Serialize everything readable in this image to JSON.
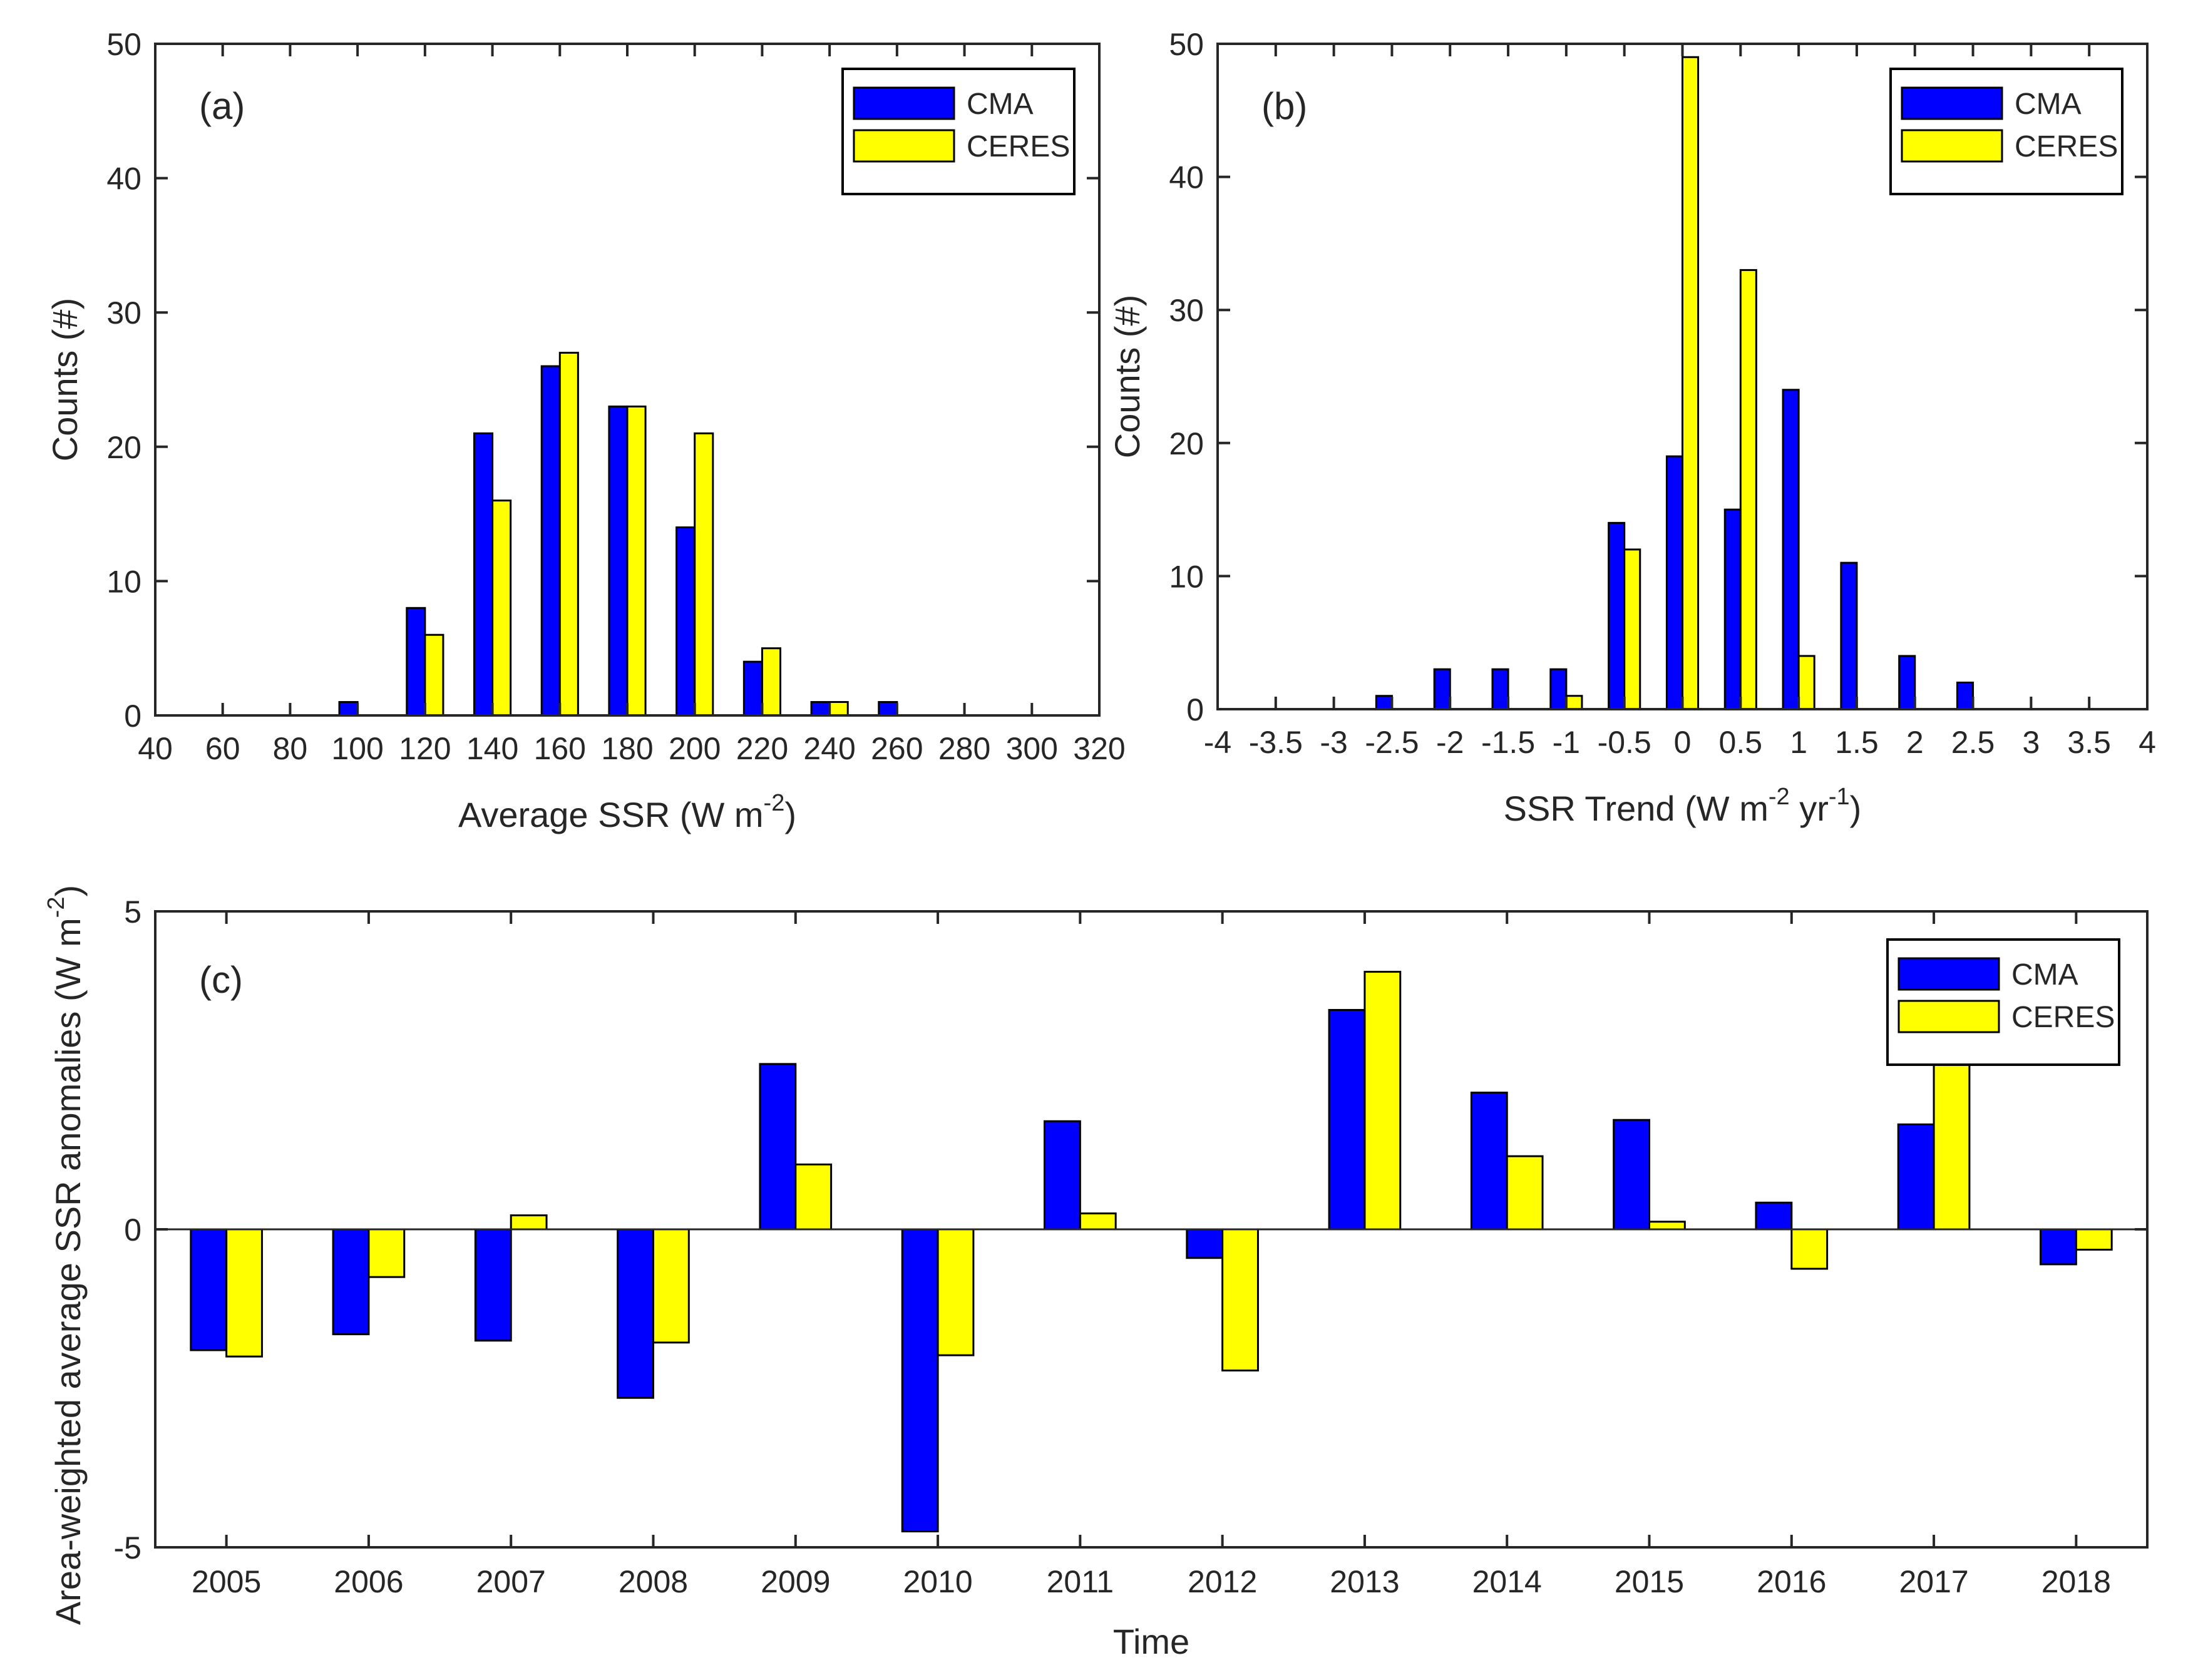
{
  "colors": {
    "cma": "#0000ff",
    "ceres": "#ffff00",
    "axis": "#262626",
    "edge": "#000000"
  },
  "chart_data": [
    {
      "type": "bar",
      "panel_label": "(a)",
      "title": "",
      "xlabel": {
        "main": "Average SSR (W m",
        "sup": "-2",
        "close": ")"
      },
      "ylabel": "Counts (#)",
      "xlim": [
        40,
        320
      ],
      "ylim": [
        0,
        50
      ],
      "xticks": [
        "40",
        "60",
        "80",
        "100",
        "120",
        "140",
        "160",
        "180",
        "200",
        "220",
        "240",
        "260",
        "280",
        "300",
        "320"
      ],
      "yticks": [
        "0",
        "10",
        "20",
        "30",
        "40",
        "50"
      ],
      "bin_width": 20,
      "legend": {
        "position": "top-right",
        "entries": [
          "CMA",
          "CERES"
        ]
      },
      "categories": [
        100,
        120,
        140,
        160,
        180,
        200,
        220,
        240,
        260
      ],
      "series": [
        {
          "name": "CMA",
          "values": [
            1,
            8,
            21,
            26,
            23,
            14,
            4,
            1,
            1
          ]
        },
        {
          "name": "CERES",
          "values": [
            0,
            6,
            16,
            27,
            23,
            21,
            5,
            1,
            0
          ]
        }
      ]
    },
    {
      "type": "bar",
      "panel_label": "(b)",
      "title": "",
      "xlabel": {
        "main": "SSR Trend (W m",
        "sup": "-2",
        "mid": " yr",
        "sup2": "-1",
        "close": ")"
      },
      "ylabel": "Counts (#)",
      "xlim": [
        -4,
        4
      ],
      "ylim": [
        0,
        50
      ],
      "xticks": [
        "-4",
        "-3.5",
        "-3",
        "-2.5",
        "-2",
        "-1.5",
        "-1",
        "-0.5",
        "0",
        "0.5",
        "1",
        "1.5",
        "2",
        "2.5",
        "3",
        "3.5",
        "4"
      ],
      "yticks": [
        "0",
        "10",
        "20",
        "30",
        "40",
        "50"
      ],
      "bin_width": 0.5,
      "legend": {
        "position": "top-right",
        "entries": [
          "CMA",
          "CERES"
        ]
      },
      "categories": [
        -2.5,
        -2,
        -1.5,
        -1,
        -0.5,
        0,
        0.5,
        1,
        1.5,
        2,
        2.5
      ],
      "series": [
        {
          "name": "CMA",
          "values": [
            1,
            3,
            3,
            3,
            14,
            19,
            15,
            24,
            11,
            4,
            2
          ]
        },
        {
          "name": "CERES",
          "values": [
            0,
            0,
            0,
            1,
            12,
            49,
            33,
            4,
            0,
            0,
            0
          ]
        }
      ]
    },
    {
      "type": "bar",
      "panel_label": "(c)",
      "title": "",
      "xlabel": {
        "main": "Time"
      },
      "ylabel": {
        "main": "Area-weighted average SSR anomalies (W m",
        "sup": "-2",
        "close": ")"
      },
      "xlim": [
        2004.5,
        2018.5
      ],
      "ylim": [
        -5,
        5
      ],
      "yticks": [
        "-5",
        "0",
        "5"
      ],
      "legend": {
        "position": "top-right",
        "entries": [
          "CMA",
          "CERES"
        ]
      },
      "categories": [
        "2005",
        "2006",
        "2007",
        "2008",
        "2009",
        "2010",
        "2011",
        "2012",
        "2013",
        "2014",
        "2015",
        "2016",
        "2017",
        "2018"
      ],
      "series": [
        {
          "name": "CMA",
          "values": [
            -1.9,
            -1.65,
            -1.75,
            -2.65,
            2.6,
            -4.75,
            1.7,
            -0.45,
            3.45,
            2.15,
            1.72,
            0.42,
            1.65,
            -0.55
          ]
        },
        {
          "name": "CERES",
          "values": [
            -2.0,
            -0.75,
            0.22,
            -1.78,
            1.02,
            -1.98,
            0.25,
            -2.22,
            4.05,
            1.15,
            0.12,
            -0.62,
            2.75,
            -0.32
          ]
        }
      ]
    }
  ]
}
